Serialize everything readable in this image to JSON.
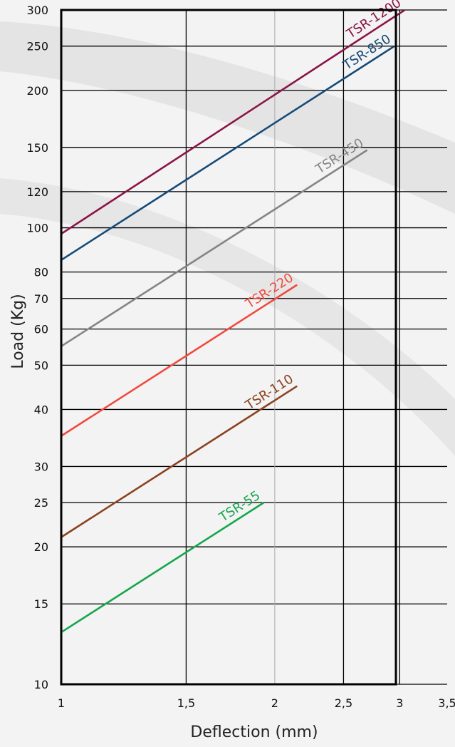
{
  "chart_data": {
    "type": "line",
    "x_scale": "log",
    "y_scale": "log",
    "xlim": [
      1,
      3.5
    ],
    "ylim": [
      10,
      300
    ],
    "grid": true,
    "xlabel": "Deflection (mm)",
    "ylabel": "Load (Kg)",
    "x_ticks": [
      1,
      1.5,
      2,
      2.5,
      3,
      3.5
    ],
    "x_tick_labels": [
      "1",
      "1,5",
      "2",
      "2,5",
      "3",
      "3,5"
    ],
    "y_ticks": [
      10,
      15,
      20,
      25,
      30,
      40,
      50,
      60,
      70,
      80,
      100,
      120,
      150,
      200,
      250,
      300
    ],
    "y_tick_labels": [
      "10",
      "15",
      "20",
      "25",
      "30",
      "40",
      "50",
      "60",
      "70",
      "80",
      "100",
      "120",
      "150",
      "200",
      "250",
      "300"
    ],
    "series": [
      {
        "name": "TSR-1200",
        "color": "#8a1446",
        "x": [
          1,
          3.05
        ],
        "y": [
          97,
          300
        ]
      },
      {
        "name": "TSR-850",
        "color": "#154a78",
        "x": [
          1,
          2.95
        ],
        "y": [
          85,
          250
        ]
      },
      {
        "name": "TSR-450",
        "color": "#858585",
        "x": [
          1,
          2.7
        ],
        "y": [
          55,
          148
        ]
      },
      {
        "name": "TSR-220",
        "color": "#f04a3e",
        "x": [
          1,
          2.15
        ],
        "y": [
          35,
          75
        ]
      },
      {
        "name": "TSR-110",
        "color": "#8b4220",
        "x": [
          1,
          2.15
        ],
        "y": [
          21,
          45
        ]
      },
      {
        "name": "TSR-55",
        "color": "#17a64d",
        "x": [
          1,
          1.93
        ],
        "y": [
          13,
          25
        ]
      }
    ]
  }
}
